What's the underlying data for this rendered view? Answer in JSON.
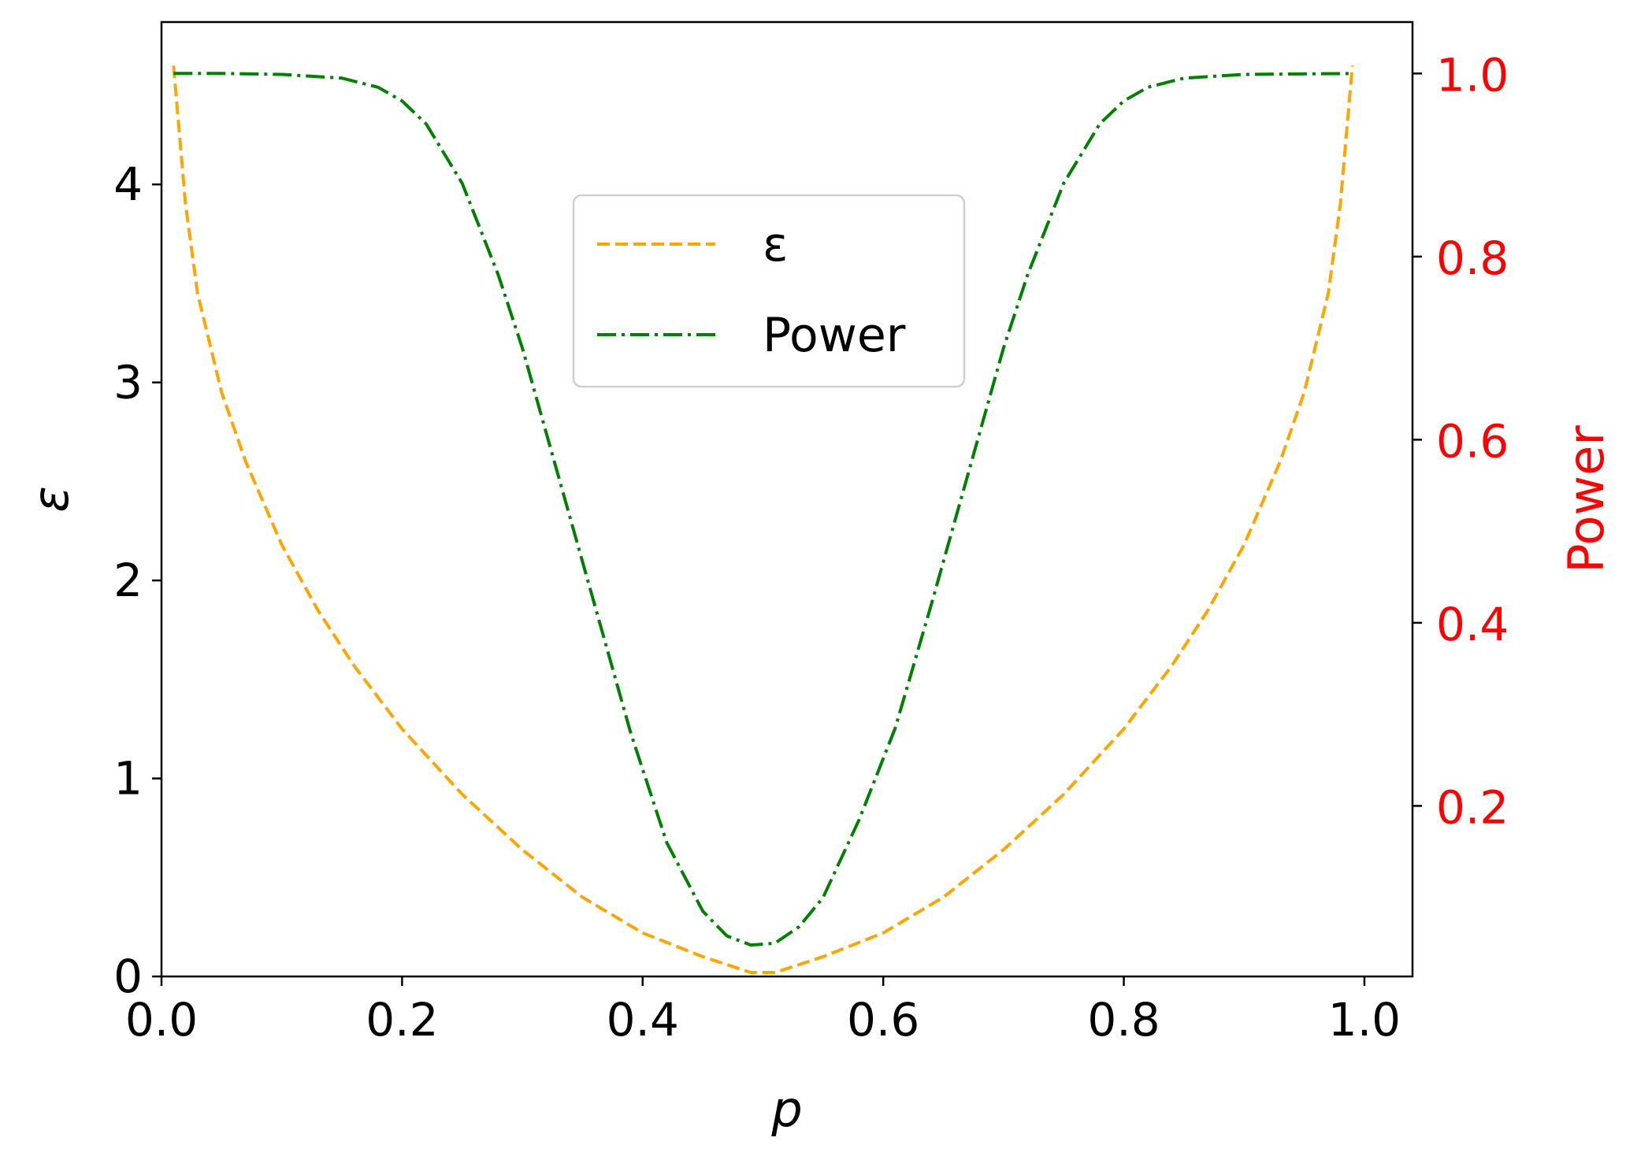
{
  "chart_data": {
    "type": "line",
    "title": "",
    "xlabel": "p",
    "ylabel": "ε",
    "y2label": "Power",
    "xlim": [
      0.0,
      1.04
    ],
    "ylim": [
      0,
      4.82
    ],
    "y2lim": [
      0.0137,
      1.0562
    ],
    "xticks": [
      "0.0",
      "0.2",
      "0.4",
      "0.6",
      "0.8",
      "1.0"
    ],
    "yticks": [
      "0",
      "1",
      "2",
      "3",
      "4"
    ],
    "y2ticks": [
      "0.2",
      "0.4",
      "0.6",
      "0.8",
      "1.0"
    ],
    "grid": false,
    "legend_position": "upper-center",
    "colors": {
      "epsilon": "#FFA500",
      "power": "#008000",
      "right_axis": "#FF0000",
      "axis": "#000000"
    },
    "series": [
      {
        "name": "ε",
        "axis": "left",
        "style": "dashed",
        "x": [
          0.01,
          0.02,
          0.03,
          0.05,
          0.07,
          0.1,
          0.13,
          0.16,
          0.2,
          0.25,
          0.3,
          0.35,
          0.4,
          0.45,
          0.49,
          0.51,
          0.55,
          0.6,
          0.65,
          0.7,
          0.75,
          0.8,
          0.84,
          0.87,
          0.9,
          0.93,
          0.95,
          0.97,
          0.98,
          0.99
        ],
        "y": [
          4.6,
          3.9,
          3.45,
          2.95,
          2.6,
          2.18,
          1.85,
          1.57,
          1.25,
          0.92,
          0.64,
          0.4,
          0.22,
          0.1,
          0.02,
          0.02,
          0.1,
          0.22,
          0.4,
          0.64,
          0.92,
          1.25,
          1.57,
          1.85,
          2.18,
          2.6,
          2.95,
          3.45,
          3.9,
          4.6
        ]
      },
      {
        "name": "Power",
        "axis": "right",
        "style": "dashdot",
        "x": [
          0.01,
          0.05,
          0.1,
          0.15,
          0.18,
          0.2,
          0.22,
          0.25,
          0.28,
          0.3,
          0.33,
          0.36,
          0.39,
          0.42,
          0.45,
          0.47,
          0.49,
          0.51,
          0.53,
          0.55,
          0.58,
          0.61,
          0.64,
          0.67,
          0.7,
          0.72,
          0.75,
          0.78,
          0.8,
          0.82,
          0.85,
          0.9,
          0.99
        ],
        "y": [
          1.0,
          1.0,
          0.999,
          0.995,
          0.985,
          0.97,
          0.945,
          0.88,
          0.78,
          0.7,
          0.56,
          0.42,
          0.28,
          0.16,
          0.085,
          0.058,
          0.048,
          0.05,
          0.068,
          0.1,
          0.185,
          0.285,
          0.42,
          0.56,
          0.7,
          0.78,
          0.88,
          0.945,
          0.97,
          0.985,
          0.995,
          0.999,
          1.0
        ]
      }
    ]
  }
}
